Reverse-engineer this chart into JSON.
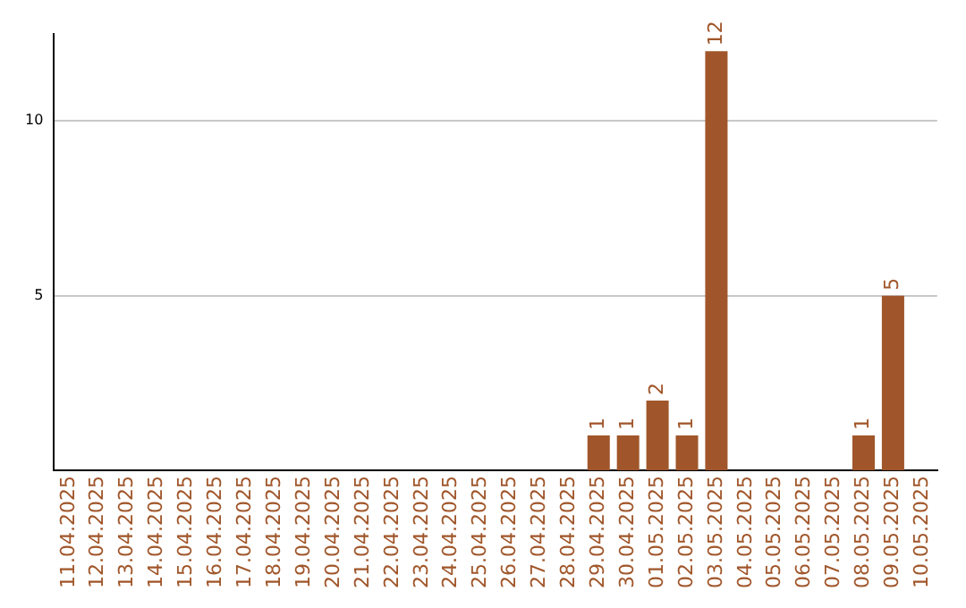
{
  "chart_data": {
    "type": "bar",
    "categories": [
      "11.04.2025",
      "12.04.2025",
      "13.04.2025",
      "14.04.2025",
      "15.04.2025",
      "16.04.2025",
      "17.04.2025",
      "18.04.2025",
      "19.04.2025",
      "20.04.2025",
      "21.04.2025",
      "22.04.2025",
      "23.04.2025",
      "24.04.2025",
      "25.04.2025",
      "26.04.2025",
      "27.04.2025",
      "28.04.2025",
      "29.04.2025",
      "30.04.2025",
      "01.05.2025",
      "02.05.2025",
      "03.05.2025",
      "04.05.2025",
      "05.05.2025",
      "06.05.2025",
      "07.05.2025",
      "08.05.2025",
      "09.05.2025",
      "10.05.2025"
    ],
    "values": [
      0,
      0,
      0,
      0,
      0,
      0,
      0,
      0,
      0,
      0,
      0,
      0,
      0,
      0,
      0,
      0,
      0,
      0,
      1,
      1,
      2,
      1,
      12,
      0,
      0,
      0,
      0,
      1,
      5,
      0
    ],
    "value_labels": [
      null,
      null,
      null,
      null,
      null,
      null,
      null,
      null,
      null,
      null,
      null,
      null,
      null,
      null,
      null,
      null,
      null,
      null,
      "1",
      "1",
      "2",
      "1",
      "12",
      null,
      null,
      null,
      null,
      "1",
      "5",
      null
    ],
    "color": "#a0562a",
    "ylim": [
      0,
      12.5
    ],
    "yticks": [
      5,
      10
    ],
    "grid": "y"
  }
}
